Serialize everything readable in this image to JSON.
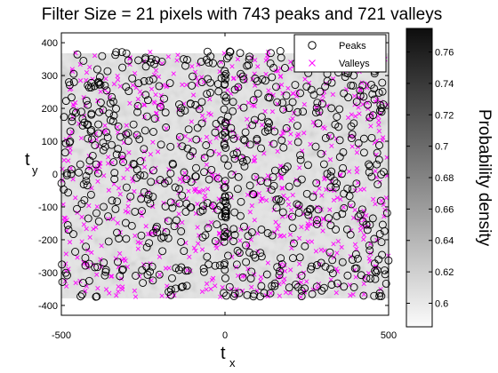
{
  "chart_data": {
    "type": "scatter",
    "title": "Filter Size = 21 pixels with 743 peaks and 721 valleys",
    "xlabel": {
      "main": "t",
      "sub": "x"
    },
    "ylabel": {
      "main": "t",
      "sub": "y"
    },
    "xlim": [
      -500,
      500
    ],
    "ylim": [
      -430,
      430
    ],
    "xticks": [
      -500,
      0,
      500
    ],
    "yticks": [
      -400,
      -300,
      -200,
      -100,
      0,
      100,
      200,
      300,
      400
    ],
    "grid": false,
    "legend_position": "top-right",
    "background": "grayscale probability density map, light gray with darker speckle inside |x|<=500, |y|<=375",
    "series": [
      {
        "name": "Peaks",
        "marker": "circle",
        "color": "#000000",
        "count": 743
      },
      {
        "name": "Valleys",
        "marker": "x",
        "color": "#ff00ff",
        "count": 721
      }
    ],
    "colorbar": {
      "label": "Probability density",
      "range": [
        0.585,
        0.775
      ],
      "ticks": [
        0.6,
        0.62,
        0.64,
        0.66,
        0.68,
        0.7,
        0.72,
        0.74,
        0.76
      ],
      "colormap": "gray (dark = high)"
    }
  }
}
